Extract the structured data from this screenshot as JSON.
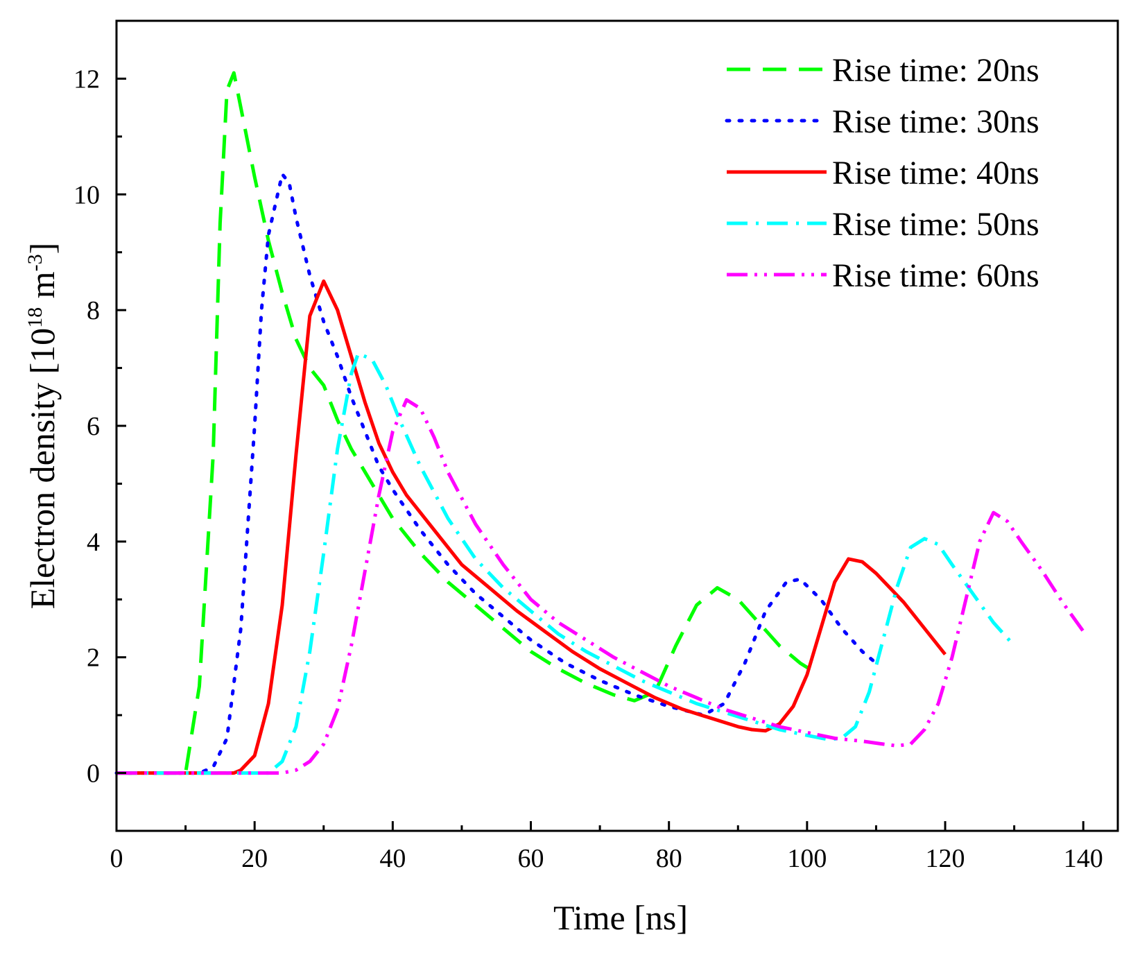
{
  "chart_data": {
    "type": "line",
    "title": "",
    "xlabel": "Time [ns]",
    "ylabel": "Electron density [",
    "ylabel_unit": "10",
    "ylabel_unit_exp": "18",
    "ylabel_unit_m": " m",
    "ylabel_unit_m_exp": "-3",
    "ylabel_close": "]",
    "xlim": [
      0,
      145
    ],
    "ylim": [
      -1,
      13
    ],
    "x_ticks": [
      0,
      20,
      40,
      60,
      80,
      100,
      120,
      140
    ],
    "y_ticks": [
      0,
      2,
      4,
      6,
      8,
      10,
      12
    ],
    "legend_position": "top-right",
    "series": [
      {
        "name": "Rise time: 20ns",
        "label": "Rise time: 20ns",
        "color": "#00ff00",
        "style": "dash",
        "points": [
          [
            0,
            0
          ],
          [
            10,
            0
          ],
          [
            12,
            1.5
          ],
          [
            14,
            5.5
          ],
          [
            15,
            9.5
          ],
          [
            16,
            11.8
          ],
          [
            17,
            12.1
          ],
          [
            18,
            11.5
          ],
          [
            20,
            10.3
          ],
          [
            22,
            9.2
          ],
          [
            24,
            8.3
          ],
          [
            26,
            7.5
          ],
          [
            28,
            7.0
          ],
          [
            30,
            6.7
          ],
          [
            32,
            6.1
          ],
          [
            34,
            5.6
          ],
          [
            36,
            5.2
          ],
          [
            38,
            4.8
          ],
          [
            40,
            4.4
          ],
          [
            44,
            3.8
          ],
          [
            48,
            3.3
          ],
          [
            52,
            2.9
          ],
          [
            56,
            2.5
          ],
          [
            60,
            2.1
          ],
          [
            64,
            1.8
          ],
          [
            68,
            1.55
          ],
          [
            72,
            1.35
          ],
          [
            75,
            1.25
          ],
          [
            78,
            1.4
          ],
          [
            81,
            2.2
          ],
          [
            84,
            2.9
          ],
          [
            87,
            3.2
          ],
          [
            90,
            3.0
          ],
          [
            93,
            2.6
          ],
          [
            96,
            2.2
          ],
          [
            99,
            1.9
          ],
          [
            101,
            1.75
          ]
        ]
      },
      {
        "name": "Rise time: 30ns",
        "label": "Rise time: 30ns",
        "color": "#0000ff",
        "style": "dot",
        "points": [
          [
            0,
            0
          ],
          [
            12,
            0
          ],
          [
            14,
            0.1
          ],
          [
            16,
            0.6
          ],
          [
            18,
            2.5
          ],
          [
            20,
            6.0
          ],
          [
            21,
            8.0
          ],
          [
            22,
            9.3
          ],
          [
            24,
            10.35
          ],
          [
            25,
            10.2
          ],
          [
            26,
            9.6
          ],
          [
            28,
            8.6
          ],
          [
            30,
            7.8
          ],
          [
            32,
            7.2
          ],
          [
            34,
            6.5
          ],
          [
            36,
            5.9
          ],
          [
            38,
            5.3
          ],
          [
            40,
            4.9
          ],
          [
            44,
            4.2
          ],
          [
            48,
            3.6
          ],
          [
            52,
            3.1
          ],
          [
            56,
            2.7
          ],
          [
            60,
            2.3
          ],
          [
            65,
            1.9
          ],
          [
            70,
            1.6
          ],
          [
            75,
            1.35
          ],
          [
            80,
            1.15
          ],
          [
            85,
            1.0
          ],
          [
            88,
            1.2
          ],
          [
            91,
            1.9
          ],
          [
            94,
            2.8
          ],
          [
            97,
            3.3
          ],
          [
            99,
            3.35
          ],
          [
            102,
            3.0
          ],
          [
            105,
            2.5
          ],
          [
            108,
            2.1
          ],
          [
            110,
            1.9
          ]
        ]
      },
      {
        "name": "Rise time: 40ns",
        "label": "Rise time: 40ns",
        "color": "#ff0000",
        "style": "solid",
        "points": [
          [
            0,
            0
          ],
          [
            17,
            0
          ],
          [
            18,
            0.05
          ],
          [
            20,
            0.3
          ],
          [
            22,
            1.2
          ],
          [
            24,
            2.9
          ],
          [
            26,
            5.5
          ],
          [
            28,
            7.9
          ],
          [
            30,
            8.5
          ],
          [
            32,
            8.0
          ],
          [
            34,
            7.2
          ],
          [
            36,
            6.4
          ],
          [
            38,
            5.7
          ],
          [
            40,
            5.2
          ],
          [
            42,
            4.8
          ],
          [
            46,
            4.2
          ],
          [
            50,
            3.6
          ],
          [
            54,
            3.2
          ],
          [
            58,
            2.8
          ],
          [
            62,
            2.45
          ],
          [
            66,
            2.1
          ],
          [
            70,
            1.8
          ],
          [
            74,
            1.55
          ],
          [
            78,
            1.3
          ],
          [
            82,
            1.1
          ],
          [
            86,
            0.95
          ],
          [
            90,
            0.8
          ],
          [
            92,
            0.75
          ],
          [
            94,
            0.73
          ],
          [
            96,
            0.85
          ],
          [
            98,
            1.15
          ],
          [
            100,
            1.7
          ],
          [
            102,
            2.5
          ],
          [
            104,
            3.3
          ],
          [
            106,
            3.7
          ],
          [
            108,
            3.65
          ],
          [
            110,
            3.45
          ],
          [
            112,
            3.2
          ],
          [
            114,
            2.95
          ],
          [
            116,
            2.65
          ],
          [
            118,
            2.35
          ],
          [
            120,
            2.05
          ]
        ]
      },
      {
        "name": "Rise time: 50ns",
        "label": "Rise time: 50ns",
        "color": "#00ffff",
        "style": "dashdot",
        "points": [
          [
            0,
            0
          ],
          [
            22,
            0
          ],
          [
            24,
            0.2
          ],
          [
            26,
            0.8
          ],
          [
            28,
            2.1
          ],
          [
            30,
            3.8
          ],
          [
            32,
            5.6
          ],
          [
            34,
            6.9
          ],
          [
            35,
            7.25
          ],
          [
            37,
            7.15
          ],
          [
            39,
            6.7
          ],
          [
            41,
            6.1
          ],
          [
            44,
            5.3
          ],
          [
            48,
            4.4
          ],
          [
            52,
            3.7
          ],
          [
            56,
            3.2
          ],
          [
            60,
            2.8
          ],
          [
            64,
            2.4
          ],
          [
            68,
            2.1
          ],
          [
            72,
            1.85
          ],
          [
            76,
            1.6
          ],
          [
            80,
            1.4
          ],
          [
            84,
            1.2
          ],
          [
            88,
            1.05
          ],
          [
            92,
            0.9
          ],
          [
            96,
            0.75
          ],
          [
            100,
            0.65
          ],
          [
            103,
            0.58
          ],
          [
            105,
            0.6
          ],
          [
            107,
            0.8
          ],
          [
            109,
            1.4
          ],
          [
            111,
            2.3
          ],
          [
            113,
            3.2
          ],
          [
            115,
            3.9
          ],
          [
            117,
            4.05
          ],
          [
            119,
            3.95
          ],
          [
            121,
            3.6
          ],
          [
            124,
            3.1
          ],
          [
            127,
            2.6
          ],
          [
            130,
            2.2
          ]
        ]
      },
      {
        "name": "Rise time: 60ns",
        "label": "Rise time: 60ns",
        "color": "#ff00ff",
        "style": "dashdotdot",
        "points": [
          [
            0,
            0
          ],
          [
            24,
            0
          ],
          [
            26,
            0.05
          ],
          [
            28,
            0.2
          ],
          [
            30,
            0.5
          ],
          [
            32,
            1.1
          ],
          [
            34,
            2.2
          ],
          [
            36,
            3.5
          ],
          [
            38,
            4.8
          ],
          [
            40,
            5.9
          ],
          [
            42,
            6.45
          ],
          [
            44,
            6.3
          ],
          [
            46,
            5.8
          ],
          [
            48,
            5.2
          ],
          [
            52,
            4.3
          ],
          [
            56,
            3.6
          ],
          [
            60,
            3.0
          ],
          [
            64,
            2.6
          ],
          [
            68,
            2.3
          ],
          [
            72,
            2.0
          ],
          [
            76,
            1.75
          ],
          [
            80,
            1.5
          ],
          [
            84,
            1.3
          ],
          [
            88,
            1.1
          ],
          [
            92,
            0.95
          ],
          [
            96,
            0.8
          ],
          [
            100,
            0.7
          ],
          [
            104,
            0.6
          ],
          [
            108,
            0.55
          ],
          [
            111,
            0.5
          ],
          [
            113,
            0.47
          ],
          [
            115,
            0.5
          ],
          [
            117,
            0.75
          ],
          [
            119,
            1.2
          ],
          [
            121,
            2.0
          ],
          [
            123,
            3.0
          ],
          [
            125,
            4.0
          ],
          [
            127,
            4.5
          ],
          [
            129,
            4.35
          ],
          [
            131,
            4.0
          ],
          [
            134,
            3.5
          ],
          [
            137,
            2.95
          ],
          [
            140,
            2.45
          ]
        ]
      }
    ]
  }
}
